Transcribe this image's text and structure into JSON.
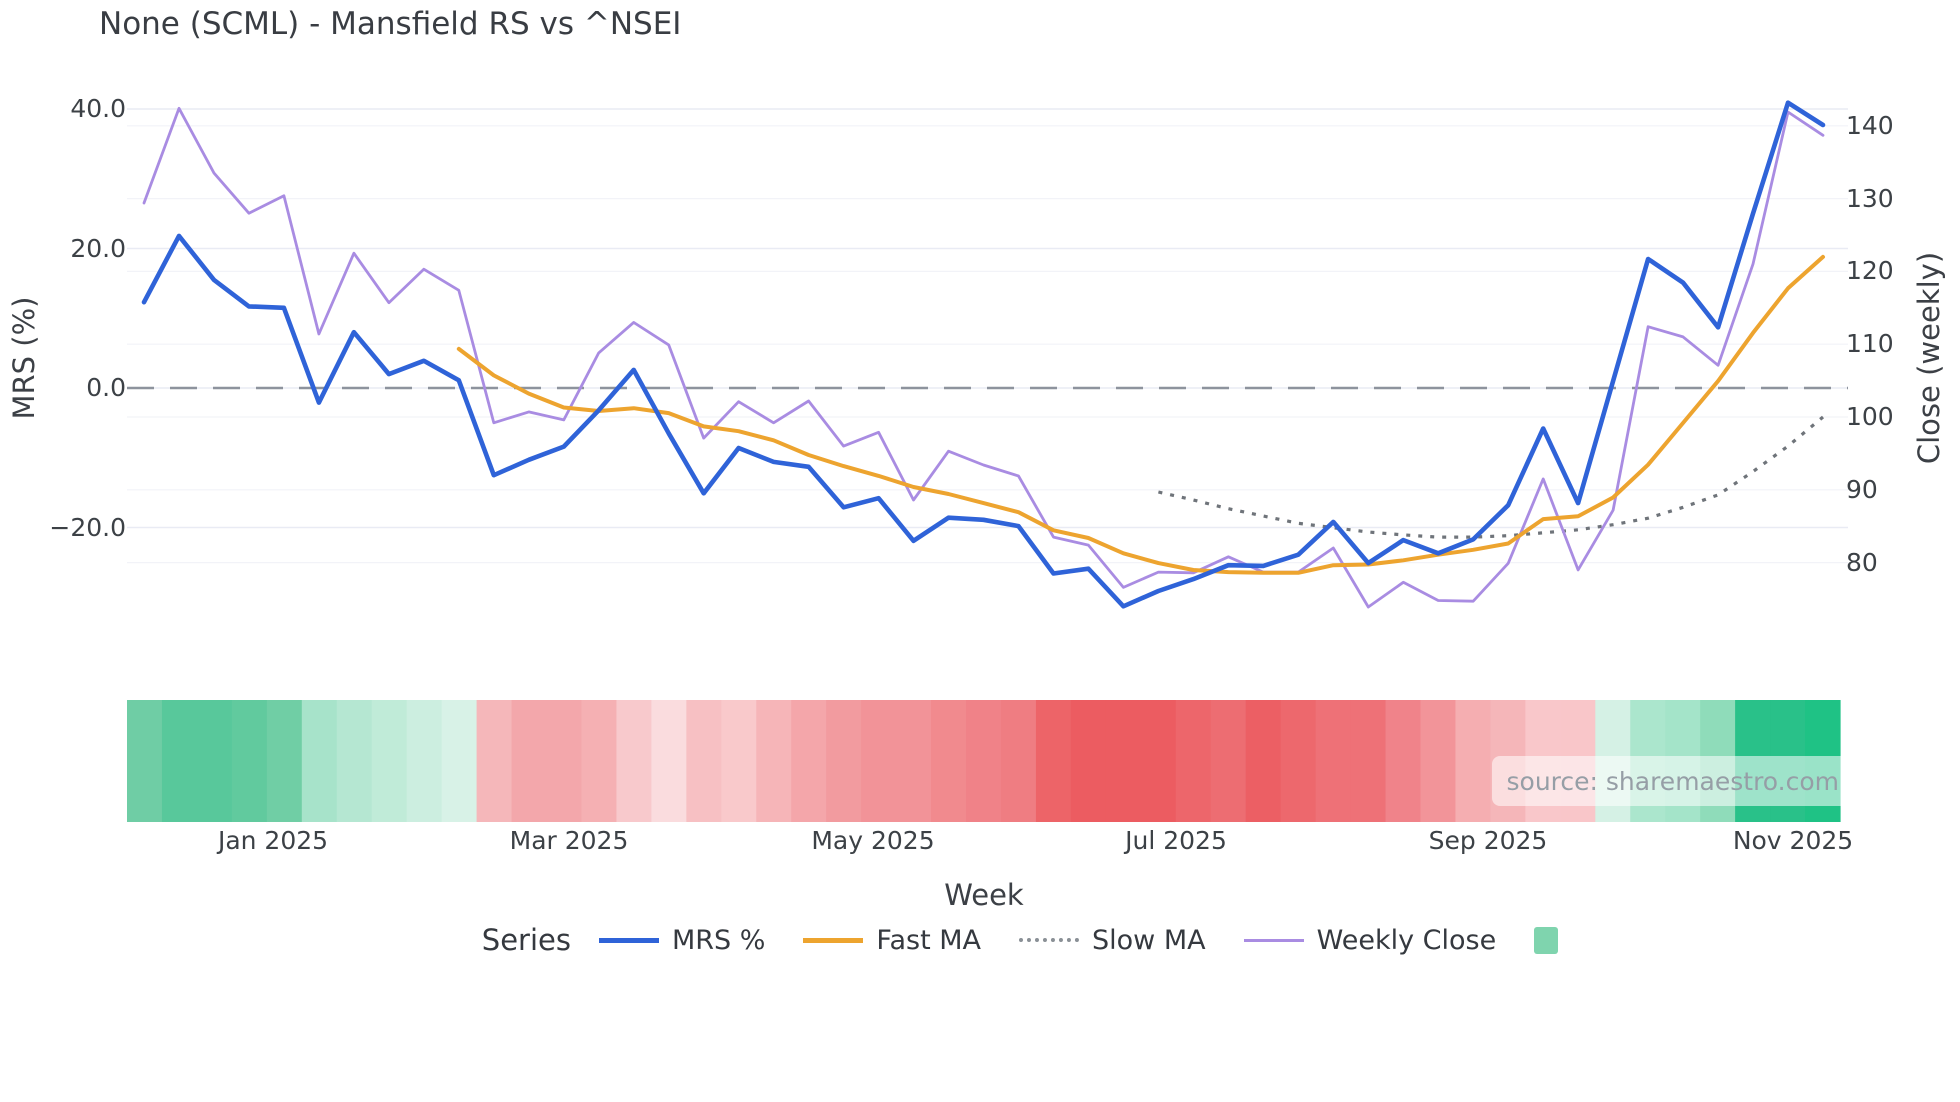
{
  "title": "None (SCML) - Mansfield RS vs ^NSEI",
  "axes": {
    "left_label": "MRS (%)",
    "right_label": "Close (weekly)",
    "x_label": "Week"
  },
  "source_text": "source: sharemaestro.com",
  "legend": {
    "title": "Series",
    "heatmap_swatch_color": "#7fd4ae"
  },
  "chart_data": {
    "type": "line",
    "title": "None (SCML) - Mansfield RS vs ^NSEI",
    "xlabel": "Week",
    "n_weeks": 49,
    "x_tick_labels": [
      {
        "label": "Jan 2025",
        "week_index": 3.69
      },
      {
        "label": "Mar 2025",
        "week_index": 12.15
      },
      {
        "label": "May 2025",
        "week_index": 20.84
      },
      {
        "label": "Jul 2025",
        "week_index": 29.5
      },
      {
        "label": "Sep 2025",
        "week_index": 38.42
      },
      {
        "label": "Nov 2025",
        "week_index": 47.14
      }
    ],
    "left_axis": {
      "label": "MRS (%)",
      "tick_labels": [
        "40.0",
        "20.0",
        "0.0",
        "−20.0"
      ],
      "tick_values": [
        40,
        20,
        0,
        -20
      ],
      "range_hint": [
        -33,
        42
      ],
      "zero_line": "dashed"
    },
    "right_axis": {
      "label": "Close (weekly)",
      "tick_labels": [
        "140",
        "130",
        "120",
        "110",
        "100",
        "90",
        "80"
      ],
      "tick_values": [
        140,
        130,
        120,
        110,
        100,
        90,
        80
      ]
    },
    "series": [
      {
        "name": "MRS %",
        "axis": "left",
        "color": "#2f63d8",
        "width": 4.6,
        "style": "solid",
        "values": [
          12.3,
          21.8,
          15.5,
          11.7,
          11.5,
          -2.1,
          8.0,
          2.0,
          3.9,
          1.1,
          -12.5,
          -10.3,
          -8.4,
          -3.2,
          2.6,
          -6.5,
          -15.1,
          -8.6,
          -10.6,
          -11.3,
          -17.1,
          -15.8,
          -21.9,
          -18.6,
          -18.9,
          -19.8,
          -26.6,
          -25.9,
          -31.3,
          -29.1,
          -27.4,
          -25.4,
          -25.5,
          -23.9,
          -19.2,
          -25.1,
          -21.8,
          -23.7,
          -21.7,
          -16.8,
          -5.8,
          -16.5,
          1.0,
          18.5,
          15.1,
          8.7,
          25.0,
          40.9,
          37.7
        ]
      },
      {
        "name": "Fast MA",
        "axis": "left",
        "color": "#eda42f",
        "width": 4.0,
        "style": "solid",
        "values": [
          null,
          null,
          null,
          null,
          null,
          null,
          null,
          null,
          null,
          5.6,
          1.8,
          -0.8,
          -2.8,
          -3.3,
          -2.9,
          -3.6,
          -5.5,
          -6.2,
          -7.5,
          -9.6,
          -11.2,
          -12.6,
          -14.2,
          -15.2,
          -16.5,
          -17.8,
          -20.4,
          -21.5,
          -23.7,
          -25.1,
          -26.1,
          -26.4,
          -26.5,
          -26.5,
          -25.4,
          -25.3,
          -24.7,
          -23.9,
          -23.2,
          -22.3,
          -18.8,
          -18.4,
          -15.7,
          -11.0,
          -5.0,
          1.0,
          7.9,
          14.3,
          18.8
        ]
      },
      {
        "name": "Slow MA",
        "axis": "right",
        "color": "#6f747a",
        "width": 3.2,
        "style": "dotted",
        "values": [
          null,
          null,
          null,
          null,
          null,
          null,
          null,
          null,
          null,
          null,
          null,
          null,
          null,
          null,
          null,
          null,
          null,
          null,
          null,
          null,
          null,
          null,
          null,
          null,
          null,
          null,
          null,
          null,
          null,
          89.7,
          88.6,
          87.4,
          86.4,
          85.4,
          84.8,
          84.2,
          83.8,
          83.5,
          83.5,
          83.7,
          84.1,
          84.5,
          85.2,
          86.1,
          87.6,
          89.3,
          92.5,
          96.0,
          100.0
        ]
      },
      {
        "name": "Weekly Close",
        "axis": "right",
        "color": "#a98ce2",
        "width": 2.8,
        "style": "solid",
        "values": [
          129.4,
          142.4,
          133.5,
          128.0,
          130.4,
          111.4,
          122.5,
          115.7,
          120.3,
          117.4,
          99.2,
          100.7,
          99.6,
          108.8,
          113.0,
          109.9,
          97.1,
          102.1,
          99.2,
          102.2,
          96.0,
          97.9,
          88.6,
          95.3,
          93.4,
          91.9,
          83.5,
          82.4,
          76.6,
          78.7,
          78.6,
          80.8,
          78.7,
          78.7,
          82.0,
          73.9,
          77.3,
          74.8,
          74.7,
          79.9,
          91.5,
          79.0,
          87.2,
          112.4,
          111.0,
          107.1,
          121.0,
          141.9,
          138.7
        ]
      }
    ],
    "heatmap_row": {
      "description": "weekly sentiment strip under chart, green=positive red=negative",
      "colors": [
        "#6fcda5",
        "#58c89b",
        "#58c89b",
        "#61ca9e",
        "#70cea5",
        "#a7e3ca",
        "#b5e7d2",
        "#c0ebd8",
        "#cceee0",
        "#d8f2e7",
        "#f5b7ba",
        "#f3a7ab",
        "#f3a7ab",
        "#f5b0b3",
        "#f8c9cc",
        "#fadcde",
        "#f7c0c3",
        "#f9c9cb",
        "#f6b5b8",
        "#f4a6aa",
        "#f29b9f",
        "#f29398",
        "#f29398",
        "#f18a8e",
        "#f08288",
        "#ef7d82",
        "#ed6468",
        "#ec5c61",
        "#ec5c61",
        "#ec5c61",
        "#ed666b",
        "#ed6d72",
        "#ec5f64",
        "#ed686d",
        "#ee7177",
        "#ee7177",
        "#f0838a",
        "#f29499",
        "#f5aeb1",
        "#f5b6b9",
        "#f9c7ca",
        "#f9c6c9",
        "#d5f1e5",
        "#abe6cd",
        "#a4e4c9",
        "#8fdcba",
        "#29c189",
        "#29c189",
        "#1fc285"
      ]
    },
    "grid": {
      "left_gridlines": true,
      "right_gridlines": "faint",
      "zero_dashed_color": "#8d939d"
    }
  }
}
